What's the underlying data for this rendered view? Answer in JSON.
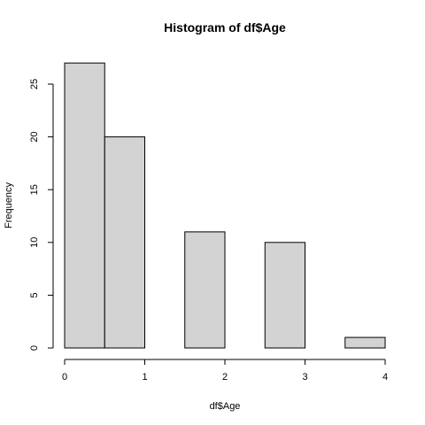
{
  "chart_data": {
    "type": "bar",
    "title": "Histogram of df$Age",
    "xlabel": "df$Age",
    "ylabel": "Frequency",
    "bins": [
      {
        "start": 0.0,
        "end": 0.5,
        "count": 27
      },
      {
        "start": 0.5,
        "end": 1.0,
        "count": 20
      },
      {
        "start": 1.0,
        "end": 1.5,
        "count": 0
      },
      {
        "start": 1.5,
        "end": 2.0,
        "count": 11
      },
      {
        "start": 2.0,
        "end": 2.5,
        "count": 0
      },
      {
        "start": 2.5,
        "end": 3.0,
        "count": 10
      },
      {
        "start": 3.0,
        "end": 3.5,
        "count": 0
      },
      {
        "start": 3.5,
        "end": 4.0,
        "count": 1
      }
    ],
    "xlim": [
      0,
      4
    ],
    "ylim": [
      0,
      28
    ],
    "x_ticks": [
      "0",
      "1",
      "2",
      "3",
      "4"
    ],
    "y_ticks": [
      "0",
      "5",
      "10",
      "15",
      "20",
      "25"
    ],
    "bar_color": "#d3d3d3",
    "edge_color": "#000000",
    "grid": false,
    "legend": "none"
  }
}
